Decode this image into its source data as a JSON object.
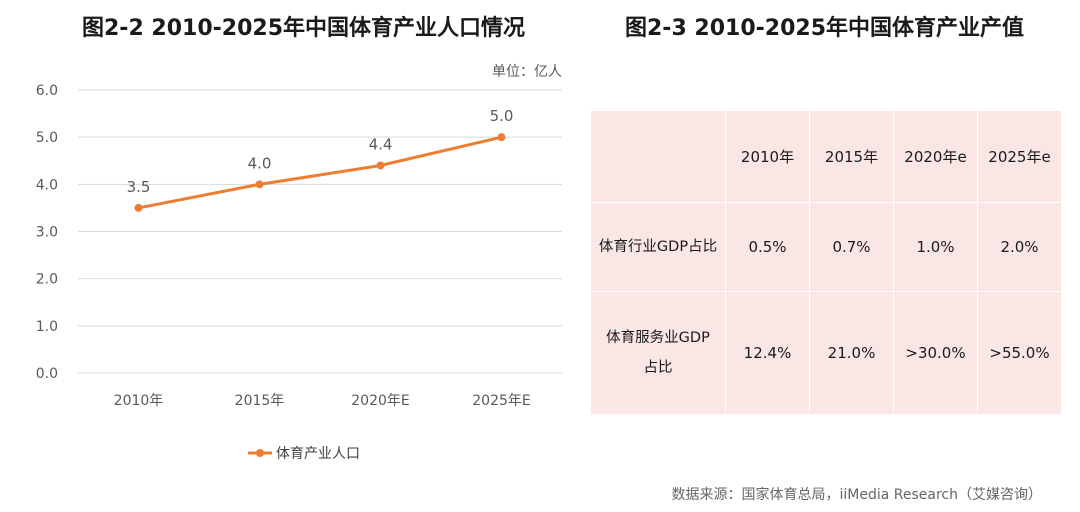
{
  "left_title": "图2-2 2010-2025年中国体育产业人口情况",
  "right_title": "图2-3 2010-2025年中国体育产业产值",
  "chart_data": {
    "type": "line",
    "title": "图2-2 2010-2025年中国体育产业人口情况",
    "unit_label": "单位：亿人",
    "categories": [
      "2010年",
      "2015年",
      "2020年E",
      "2025年E"
    ],
    "series": [
      {
        "name": "体育产业人口",
        "values": [
          3.5,
          4.0,
          4.4,
          5.0
        ],
        "labels": [
          "3.5",
          "4.0",
          "4.4",
          "5.0"
        ]
      }
    ],
    "y_ticks": [
      "0.0",
      "1.0",
      "2.0",
      "3.0",
      "4.0",
      "5.0",
      "6.0"
    ],
    "ylim": [
      0,
      6
    ],
    "grid": true,
    "legend_position": "bottom",
    "colors": {
      "line": "#ed7d31",
      "grid": "#d9d9d9",
      "axis_text": "#595959"
    }
  },
  "table": {
    "headers": [
      "",
      "2010年",
      "2015年",
      "2020年e",
      "2025年e"
    ],
    "rows": [
      {
        "label": [
          "体育行业GDP占比"
        ],
        "cells": [
          "0.5%",
          "0.7%",
          "1.0%",
          "2.0%"
        ]
      },
      {
        "label": [
          "体育服务业GDP",
          "占比"
        ],
        "cells": [
          "12.4%",
          "21.0%",
          ">30.0%",
          ">55.0%"
        ]
      }
    ],
    "background": "#fbe6e6"
  },
  "source": "数据来源：国家体育总局，iiMedia Research（艾媒咨询）"
}
